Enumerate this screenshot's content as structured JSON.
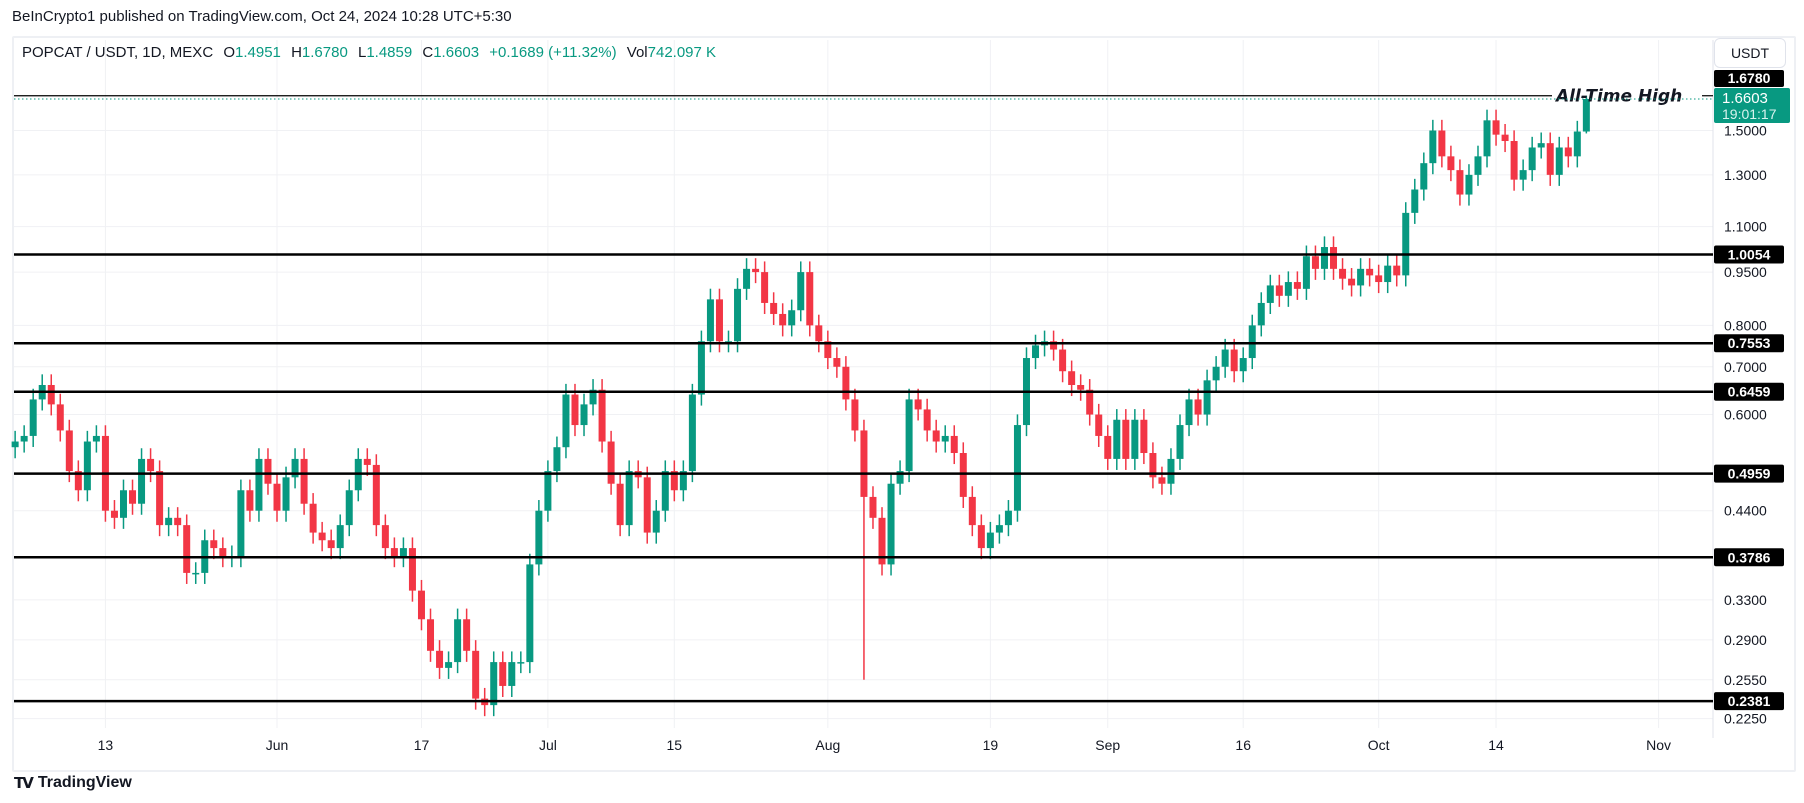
{
  "published": "BeInCrypto1 published on TradingView.com, Oct 24, 2024 10:28 UTC+5:30",
  "legend": {
    "symbol": "POPCAT / USDT, 1D, MEXC",
    "o_label": "O",
    "o": "1.4951",
    "h_label": "H",
    "h": "1.6780",
    "l_label": "L",
    "l": "1.4859",
    "c_label": "C",
    "c": "1.6603",
    "change": "+0.1689 (+11.32%)",
    "vol_label": "Vol",
    "vol": "742.097 K"
  },
  "unit_button": "USDT",
  "footer": {
    "brand": "TradingView",
    "logo_text": "TV"
  },
  "colors": {
    "up": "#089981",
    "down": "#f23645",
    "level": "#000000",
    "grid": "#f0f1f4"
  },
  "chart_data": {
    "type": "candlestick",
    "scale": "log",
    "ylim": [
      0.21,
      1.75
    ],
    "grid": true,
    "start_date": "2024-05-03",
    "first_open": 0.54,
    "close": [
      0.55,
      0.56,
      0.63,
      0.66,
      0.62,
      0.57,
      0.5,
      0.47,
      0.55,
      0.56,
      0.44,
      0.43,
      0.47,
      0.45,
      0.52,
      0.5,
      0.42,
      0.43,
      0.42,
      0.36,
      0.36,
      0.4,
      0.39,
      0.38,
      0.38,
      0.47,
      0.44,
      0.52,
      0.48,
      0.44,
      0.49,
      0.52,
      0.45,
      0.41,
      0.4,
      0.39,
      0.42,
      0.47,
      0.52,
      0.51,
      0.42,
      0.39,
      0.38,
      0.39,
      0.34,
      0.31,
      0.28,
      0.265,
      0.27,
      0.31,
      0.28,
      0.24,
      0.235,
      0.27,
      0.25,
      0.27,
      0.27,
      0.37,
      0.44,
      0.5,
      0.54,
      0.64,
      0.58,
      0.62,
      0.65,
      0.55,
      0.48,
      0.42,
      0.5,
      0.49,
      0.41,
      0.44,
      0.5,
      0.47,
      0.5,
      0.64,
      0.76,
      0.87,
      0.76,
      0.76,
      0.9,
      0.96,
      0.95,
      0.86,
      0.83,
      0.8,
      0.84,
      0.95,
      0.8,
      0.76,
      0.72,
      0.7,
      0.63,
      0.57,
      0.46,
      0.43,
      0.37,
      0.48,
      0.5,
      0.63,
      0.61,
      0.57,
      0.55,
      0.56,
      0.53,
      0.46,
      0.42,
      0.39,
      0.41,
      0.42,
      0.44,
      0.58,
      0.72,
      0.75,
      0.76,
      0.74,
      0.69,
      0.66,
      0.65,
      0.6,
      0.56,
      0.52,
      0.59,
      0.52,
      0.59,
      0.53,
      0.49,
      0.48,
      0.52,
      0.58,
      0.63,
      0.6,
      0.67,
      0.7,
      0.74,
      0.69,
      0.72,
      0.8,
      0.86,
      0.91,
      0.88,
      0.92,
      0.9,
      1.0,
      0.96,
      1.03,
      0.96,
      0.93,
      0.91,
      0.96,
      0.94,
      0.92,
      0.97,
      0.94,
      1.15,
      1.24,
      1.35,
      1.5,
      1.38,
      1.32,
      1.22,
      1.3,
      1.38,
      1.55,
      1.48,
      1.45,
      1.28,
      1.32,
      1.42,
      1.44,
      1.3,
      1.42,
      1.38,
      1.4951,
      1.6603
    ],
    "extremes": {
      "2024-08-05": {
        "low": 0.255
      },
      "2024-10-24": {
        "high": 1.678,
        "low": 1.4859
      }
    },
    "y_ticks": [
      "1.5000",
      "1.3000",
      "1.1000",
      "0.9500",
      "0.8000",
      "0.7000",
      "0.6000",
      "0.4400",
      "0.3300",
      "0.2900",
      "0.2550",
      "0.2250"
    ],
    "x_ticks": [
      {
        "date": "2024-05-13",
        "label": "13"
      },
      {
        "date": "2024-06-01",
        "label": "Jun"
      },
      {
        "date": "2024-06-17",
        "label": "17"
      },
      {
        "date": "2024-07-01",
        "label": "Jul"
      },
      {
        "date": "2024-07-15",
        "label": "15"
      },
      {
        "date": "2024-08-01",
        "label": "Aug"
      },
      {
        "date": "2024-08-19",
        "label": "19"
      },
      {
        "date": "2024-09-01",
        "label": "Sep"
      },
      {
        "date": "2024-09-16",
        "label": "16"
      },
      {
        "date": "2024-10-01",
        "label": "Oct"
      },
      {
        "date": "2024-10-14",
        "label": "14"
      },
      {
        "date": "2024-11-01",
        "label": "Nov"
      }
    ],
    "levels": [
      "1.0054",
      "0.7553",
      "0.6459",
      "0.4959",
      "0.3786",
      "0.2381"
    ],
    "ath": {
      "value": "1.6780",
      "label": "All-Time High"
    },
    "last_price": {
      "value": "1.6603",
      "countdown": "19:01:17"
    }
  }
}
